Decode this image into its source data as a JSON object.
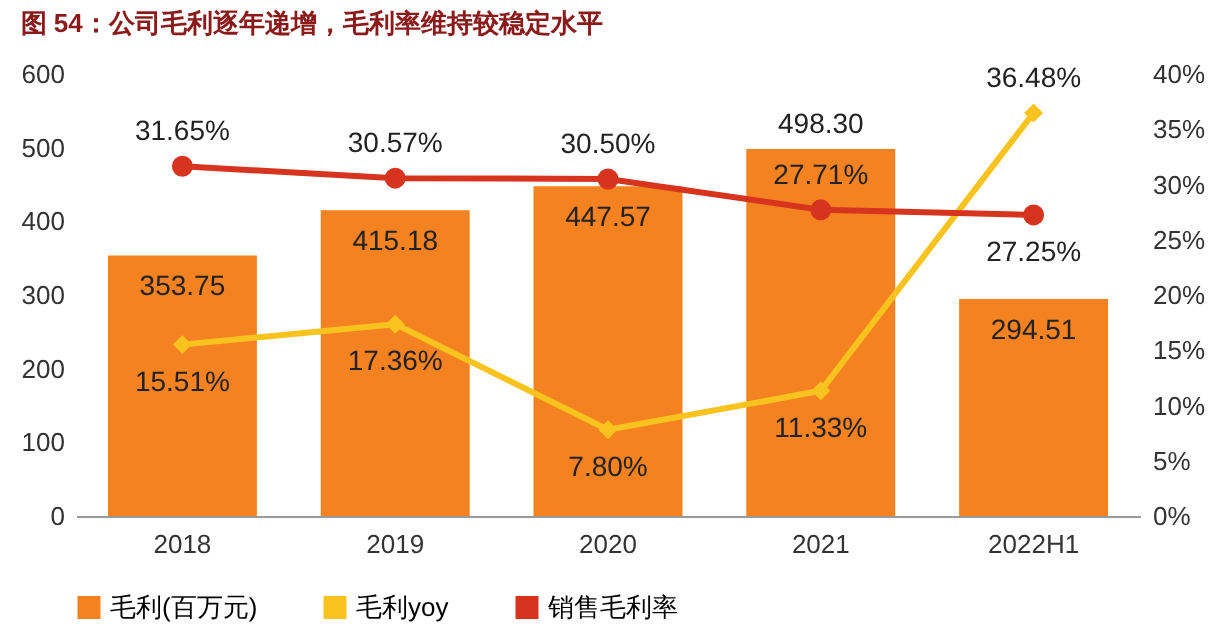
{
  "chart_data": {
    "type": "bar",
    "title": "图 54：公司毛利逐年递增，毛利率维持较稳定水平",
    "categories": [
      "2018",
      "2019",
      "2020",
      "2021",
      "2022H1"
    ],
    "series": [
      {
        "name": "毛利(百万元)",
        "color": "#f58220",
        "values": [
          353.75,
          415.18,
          447.57,
          498.3,
          294.51
        ],
        "value_labels": [
          "353.75",
          "415.18",
          "447.57",
          "498.30",
          "294.51"
        ]
      },
      {
        "name": "毛利yoy",
        "type": "line",
        "axis": "y2",
        "marker": "diamond",
        "color": "#f9c31f",
        "values": [
          15.51,
          17.36,
          7.8,
          11.33,
          36.48
        ],
        "value_labels": [
          "15.51%",
          "17.36%",
          "7.80%",
          "11.33%",
          "36.48%"
        ]
      },
      {
        "name": "销售毛利率",
        "type": "line",
        "axis": "y2",
        "marker": "circle",
        "color": "#d7341f",
        "values": [
          31.65,
          30.57,
          30.5,
          27.71,
          27.25
        ],
        "value_labels": [
          "31.65%",
          "30.57%",
          "30.50%",
          "27.71%",
          "27.25%"
        ]
      }
    ],
    "ylim": [
      0,
      600
    ],
    "yticks": [
      0,
      100,
      200,
      300,
      400,
      500,
      600
    ],
    "y2lim": [
      0,
      40
    ],
    "y2ticks": [
      {
        "value": 0,
        "label": "0%"
      },
      {
        "value": 5,
        "label": "5%"
      },
      {
        "value": 10,
        "label": "10%"
      },
      {
        "value": 15,
        "label": "15%"
      },
      {
        "value": 20,
        "label": "20%"
      },
      {
        "value": 25,
        "label": "25%"
      },
      {
        "value": 30,
        "label": "30%"
      },
      {
        "value": 35,
        "label": "35%"
      },
      {
        "value": 40,
        "label": "40%"
      }
    ],
    "grid": false,
    "legend": "bottom"
  }
}
